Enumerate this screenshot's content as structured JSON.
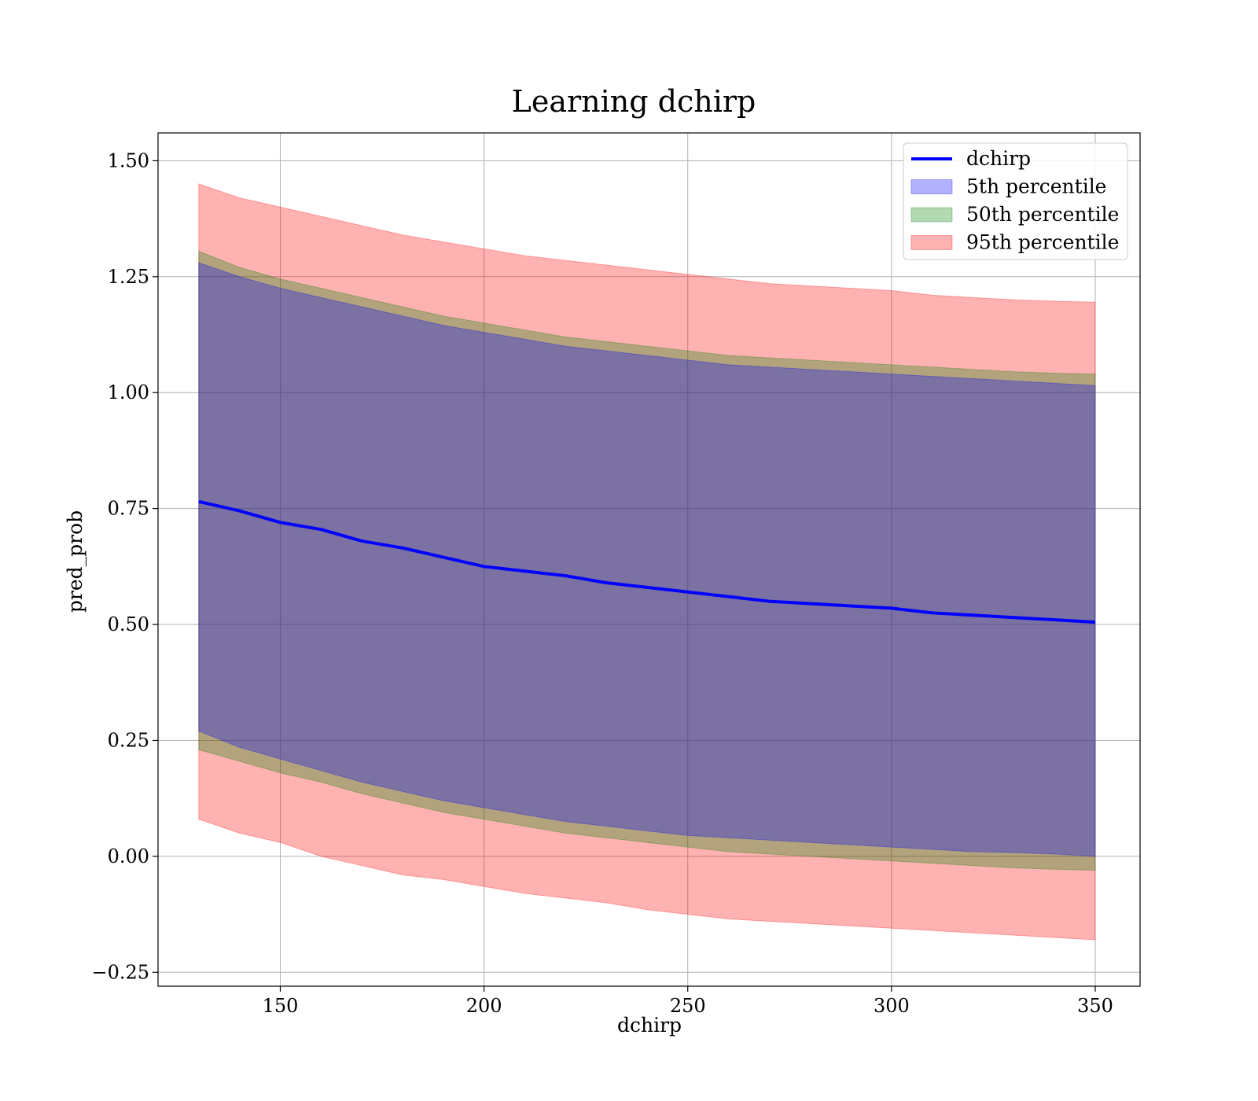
{
  "chart_data": {
    "type": "area",
    "title": "Learning dchirp",
    "xlabel": "dchirp",
    "ylabel": "pred_prob",
    "xlim": [
      120,
      361
    ],
    "ylim": [
      -0.28,
      1.56
    ],
    "grid": true,
    "legend_position": "top-right",
    "x_ticks": [
      150,
      200,
      250,
      300,
      350
    ],
    "x_tick_labels": [
      "150",
      "200",
      "250",
      "300",
      "350"
    ],
    "y_ticks": [
      -0.25,
      0.0,
      0.25,
      0.5,
      0.75,
      1.0,
      1.25,
      1.5
    ],
    "y_tick_labels": [
      "−0.25",
      "0.00",
      "0.25",
      "0.50",
      "0.75",
      "1.00",
      "1.25",
      "1.50"
    ],
    "x": [
      130,
      140,
      150,
      160,
      170,
      180,
      190,
      200,
      210,
      220,
      230,
      240,
      250,
      260,
      270,
      280,
      290,
      300,
      310,
      320,
      330,
      340,
      350
    ],
    "series": [
      {
        "name": "dchirp",
        "kind": "line",
        "color": "#0000ff",
        "values": [
          0.765,
          0.745,
          0.72,
          0.705,
          0.68,
          0.665,
          0.645,
          0.625,
          0.615,
          0.605,
          0.59,
          0.58,
          0.57,
          0.56,
          0.55,
          0.545,
          0.54,
          0.535,
          0.525,
          0.52,
          0.515,
          0.51,
          0.505
        ]
      },
      {
        "name": "5th percentile",
        "kind": "band",
        "color": "#0000ff",
        "lower": [
          0.27,
          0.235,
          0.21,
          0.185,
          0.16,
          0.14,
          0.12,
          0.105,
          0.09,
          0.075,
          0.065,
          0.055,
          0.045,
          0.04,
          0.035,
          0.03,
          0.025,
          0.02,
          0.015,
          0.01,
          0.008,
          0.005,
          0.0
        ],
        "upper": [
          1.28,
          1.25,
          1.225,
          1.205,
          1.185,
          1.165,
          1.145,
          1.13,
          1.115,
          1.1,
          1.09,
          1.08,
          1.07,
          1.06,
          1.055,
          1.05,
          1.045,
          1.04,
          1.035,
          1.03,
          1.025,
          1.02,
          1.015
        ]
      },
      {
        "name": "50th percentile",
        "kind": "band",
        "color": "#008000",
        "lower": [
          0.23,
          0.205,
          0.18,
          0.16,
          0.135,
          0.115,
          0.095,
          0.08,
          0.065,
          0.05,
          0.04,
          0.03,
          0.02,
          0.01,
          0.005,
          0.0,
          -0.005,
          -0.01,
          -0.015,
          -0.02,
          -0.025,
          -0.028,
          -0.03
        ],
        "upper": [
          1.305,
          1.27,
          1.245,
          1.225,
          1.205,
          1.185,
          1.165,
          1.15,
          1.135,
          1.12,
          1.11,
          1.1,
          1.09,
          1.08,
          1.075,
          1.07,
          1.065,
          1.06,
          1.055,
          1.05,
          1.045,
          1.042,
          1.04
        ]
      },
      {
        "name": "95th percentile",
        "kind": "band",
        "color": "#ff0000",
        "lower": [
          0.08,
          0.05,
          0.03,
          0.0,
          -0.02,
          -0.04,
          -0.05,
          -0.065,
          -0.08,
          -0.09,
          -0.1,
          -0.115,
          -0.125,
          -0.135,
          -0.14,
          -0.145,
          -0.15,
          -0.155,
          -0.16,
          -0.165,
          -0.17,
          -0.175,
          -0.18
        ],
        "upper": [
          1.45,
          1.42,
          1.4,
          1.38,
          1.36,
          1.34,
          1.325,
          1.31,
          1.295,
          1.285,
          1.275,
          1.265,
          1.255,
          1.245,
          1.235,
          1.23,
          1.225,
          1.22,
          1.21,
          1.205,
          1.2,
          1.197,
          1.195
        ]
      }
    ]
  }
}
